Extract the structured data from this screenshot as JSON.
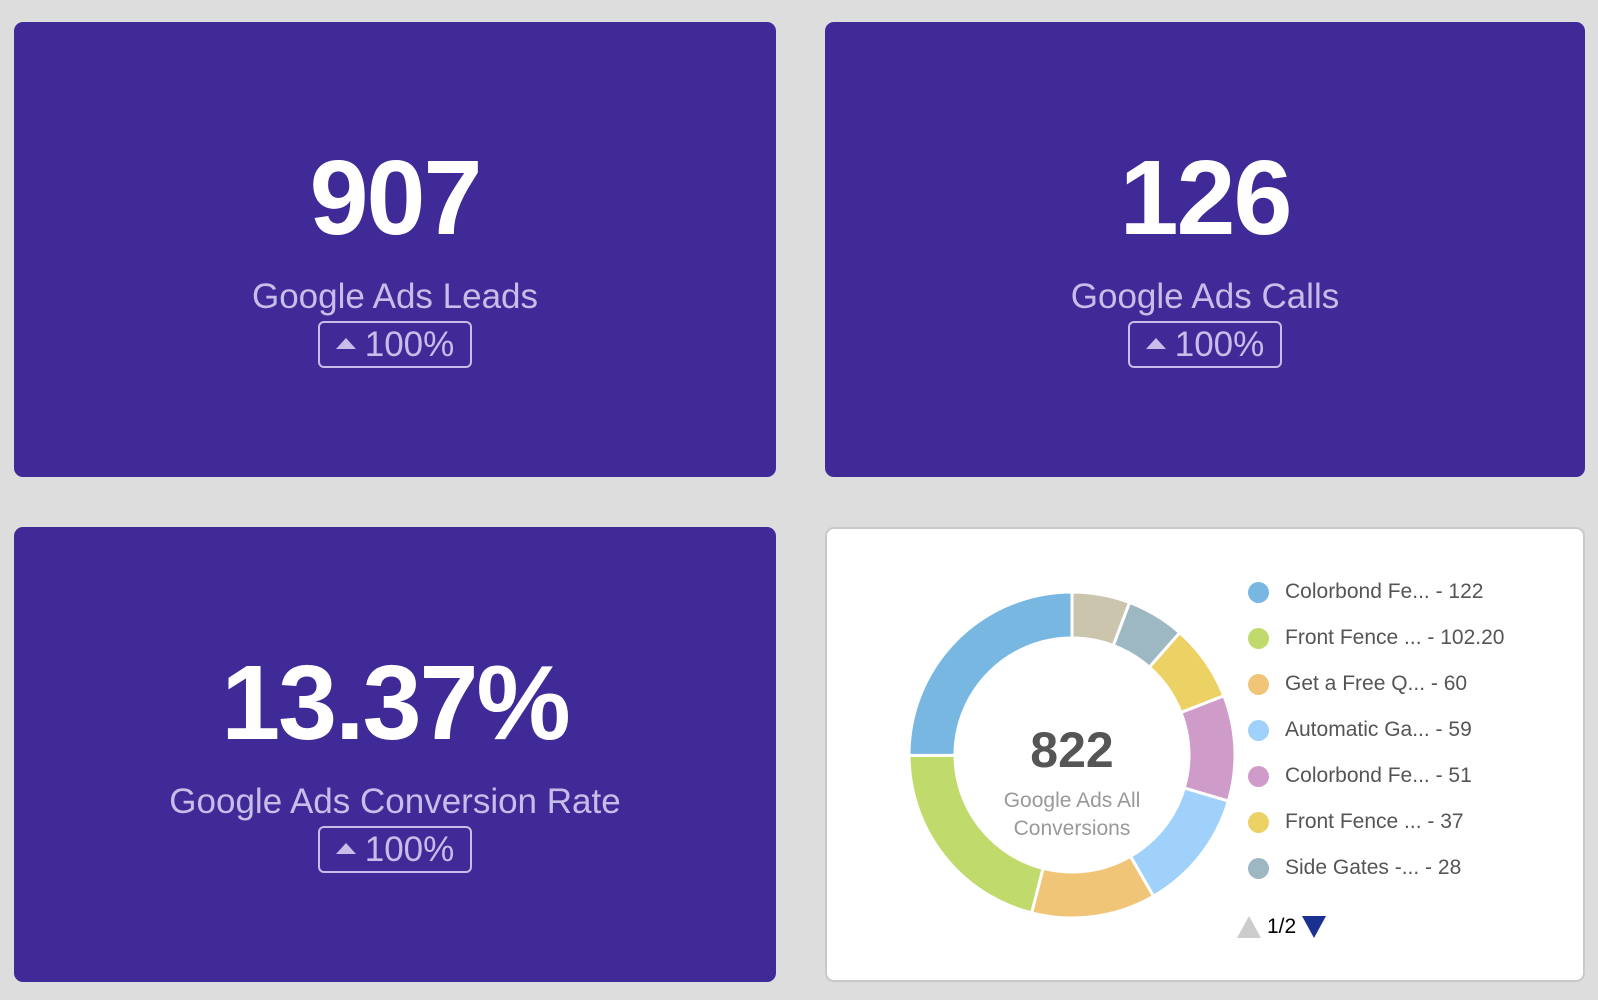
{
  "kpis": [
    {
      "id": "leads",
      "value": "907",
      "label": "Google Ads Leads",
      "change": "100%",
      "trend": "up"
    },
    {
      "id": "calls",
      "value": "126",
      "label": "Google Ads Calls",
      "change": "100%",
      "trend": "up"
    },
    {
      "id": "rate",
      "value": "13.37%",
      "label": "Google Ads Conversion Rate",
      "change": "100%",
      "trend": "up"
    }
  ],
  "colors": {
    "kpi_background": "#402a98",
    "kpi_secondary_text": "#c7bde8",
    "page_background": "#dddddd",
    "pager_active": "#1a3192",
    "pager_inactive": "#cccccc"
  },
  "chart_data": {
    "type": "pie",
    "variant": "donut",
    "title": "Google Ads All Conversions",
    "center_value": "822",
    "center_label": "Google Ads All Conversions",
    "legend_position": "right",
    "legend_page": "1/2",
    "series": [
      {
        "name": "Colorbond Fe...",
        "value": 122,
        "display": "122",
        "color": "#77b7e2"
      },
      {
        "name": "Front Fence ...",
        "value": 102.2,
        "display": "102.20",
        "color": "#c0da6c"
      },
      {
        "name": "Get a Free Q...",
        "value": 60,
        "display": "60",
        "color": "#f0c577"
      },
      {
        "name": "Automatic Ga...",
        "value": 59,
        "display": "59",
        "color": "#9fd1fa"
      },
      {
        "name": "Colorbond Fe...",
        "value": 51,
        "display": "51",
        "color": "#cf9bc8"
      },
      {
        "name": "Front Fence ...",
        "value": 37,
        "display": "37",
        "color": "#ecd265"
      },
      {
        "name": "Side Gates -...",
        "value": 28,
        "display": "28",
        "color": "#9db7c3"
      }
    ],
    "unlisted_slices": [
      {
        "value": 28,
        "color": "#cbc5ae",
        "note": "legend entry on page 2 (estimated from slice size)"
      }
    ],
    "slice_order_clockwise_from_top": [
      "unlisted-0",
      6,
      5,
      4,
      3,
      2,
      1,
      0
    ]
  }
}
